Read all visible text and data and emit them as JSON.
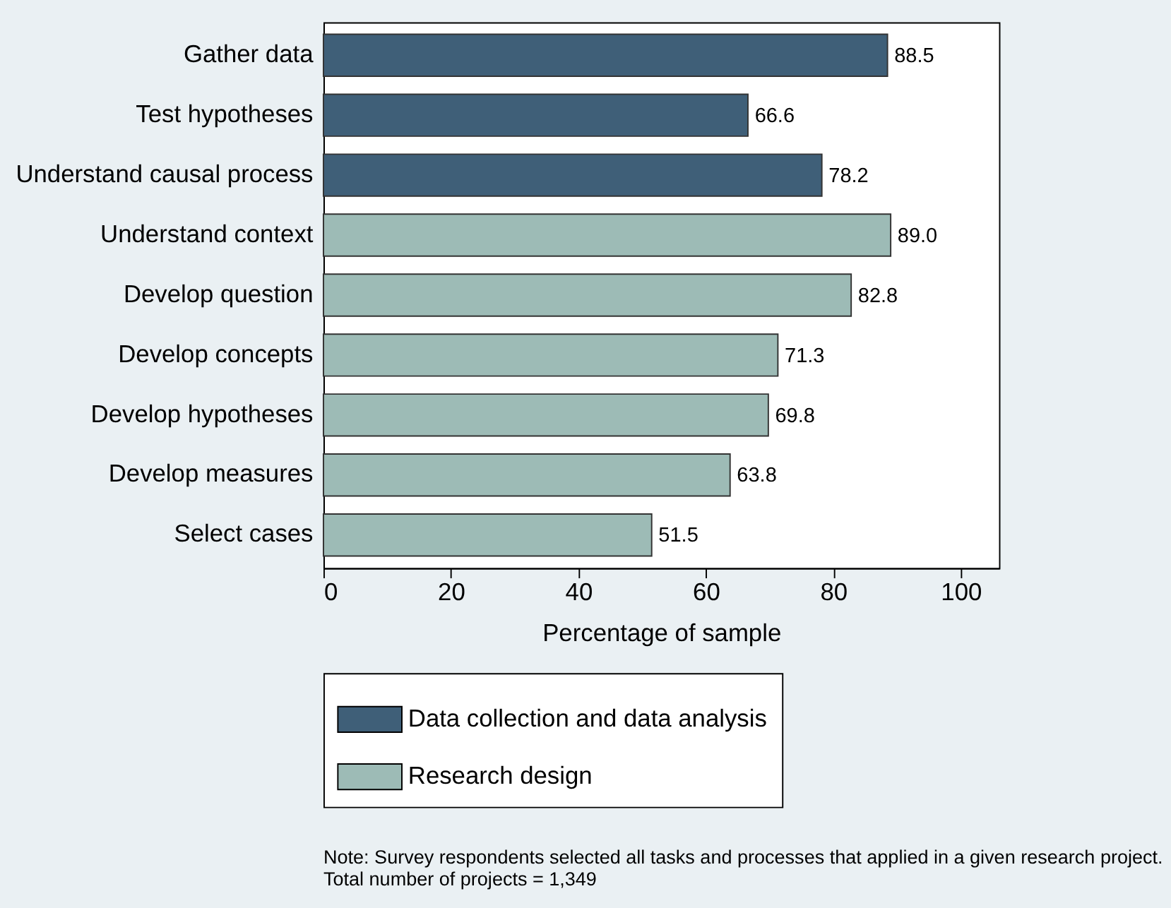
{
  "chart_data": {
    "type": "bar",
    "orientation": "horizontal",
    "categories": [
      "Gather data",
      "Test hypotheses",
      "Understand causal process",
      "Understand context",
      "Develop question",
      "Develop concepts",
      "Develop hypotheses",
      "Develop measures",
      "Select cases"
    ],
    "series": [
      {
        "name": "Data collection and data analysis",
        "color": "#3f5f78",
        "values": [
          88.5,
          66.6,
          78.2,
          null,
          null,
          null,
          null,
          null,
          null
        ],
        "value_labels": [
          "88.5",
          "66.6",
          "78.2",
          null,
          null,
          null,
          null,
          null,
          null
        ]
      },
      {
        "name": "Research design",
        "color": "#9dbbb6",
        "values": [
          null,
          null,
          null,
          89.0,
          82.8,
          71.3,
          69.8,
          63.8,
          51.5
        ],
        "value_labels": [
          null,
          null,
          null,
          "89.0",
          "82.8",
          "71.3",
          "69.8",
          "63.8",
          "51.5"
        ]
      }
    ],
    "xlabel": "Percentage of sample",
    "xlim": [
      0,
      106
    ],
    "xticks": [
      0,
      20,
      40,
      60,
      80,
      100
    ],
    "grid": false,
    "legend": "bottom",
    "annotations": [
      "Note: Survey respondents selected all tasks and processes that applied in a given research project.",
      "Total number of projects = 1,349"
    ]
  }
}
